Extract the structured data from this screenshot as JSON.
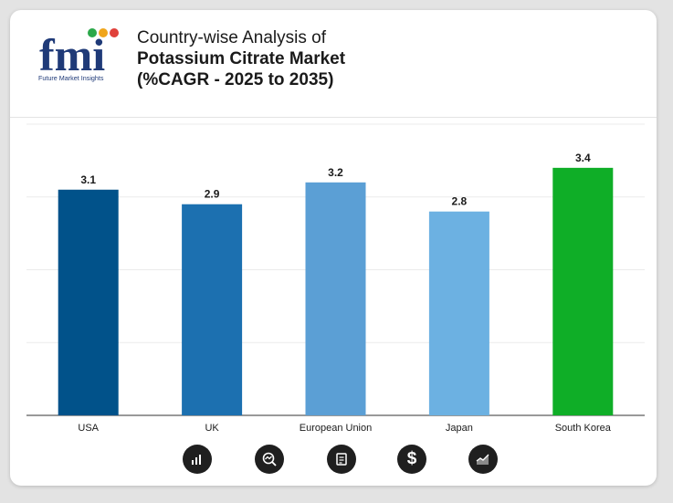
{
  "logo": {
    "text": "fmi",
    "tagline": "Future Market Insights"
  },
  "title": {
    "line1": "Country-wise Analysis of",
    "line2": "Potassium Citrate Market",
    "line3": "(%CAGR - 2025 to 2035)"
  },
  "colors": {
    "usa": "#01528a",
    "uk": "#1c70b0",
    "eu": "#5b9fd5",
    "japan": "#6cb1e2",
    "south_korea": "#0fae27",
    "grid": "#ebebeb",
    "axis": "#333333"
  },
  "footer_icons": [
    "bar-chart-icon",
    "magnifier-trend-icon",
    "document-icon",
    "dollar-icon",
    "area-chart-icon"
  ],
  "chart_data": {
    "type": "bar",
    "categories": [
      "USA",
      "UK",
      "European Union",
      "Japan",
      "South Korea"
    ],
    "values": [
      3.1,
      2.9,
      3.2,
      2.8,
      3.4
    ],
    "value_labels": [
      "3.1",
      "2.9",
      "3.2",
      "2.8",
      "3.4"
    ],
    "bar_colors": [
      "#01528a",
      "#1c70b0",
      "#5b9fd5",
      "#6cb1e2",
      "#0fae27"
    ],
    "title": "",
    "xlabel": "",
    "ylabel": "",
    "ylim": [
      0,
      4
    ],
    "grid": true,
    "legend": "none"
  }
}
